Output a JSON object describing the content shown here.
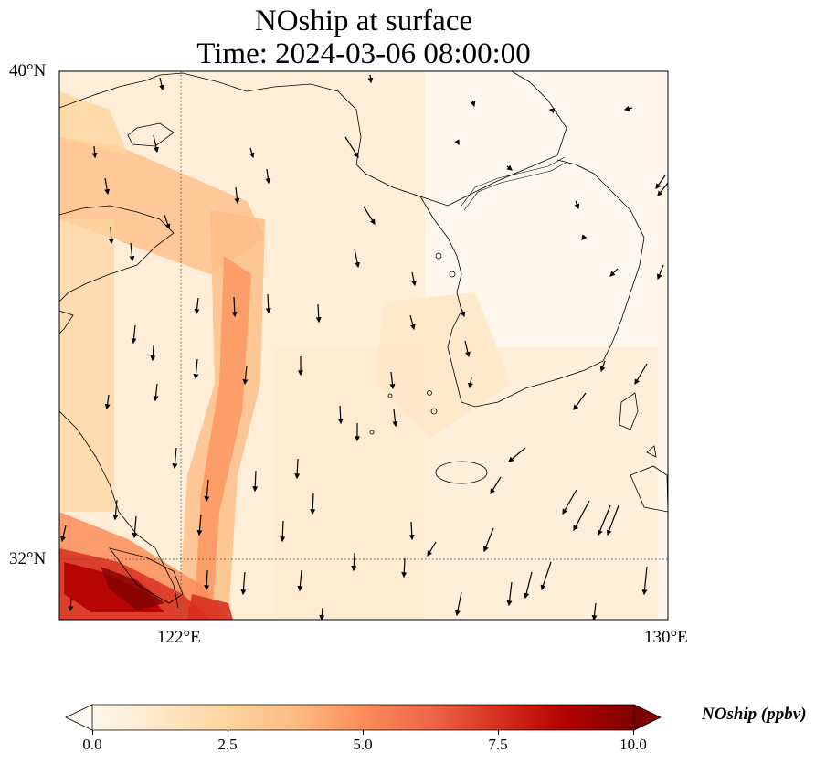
{
  "title": {
    "line1": "NOship at surface",
    "line2": "Time: 2024-03-06 08:00:00"
  },
  "axes": {
    "lat_labels": [
      "40°N",
      "32°N"
    ],
    "lon_labels": [
      "122°E",
      "130°E"
    ]
  },
  "map": {
    "lon_range": [
      120,
      130
    ],
    "lat_range": [
      31,
      40
    ],
    "gridlines": {
      "lon": [
        122
      ],
      "lat": [
        32
      ],
      "style": "dotted"
    },
    "field": "NOship",
    "colormap": "OrRd",
    "wind_vectors": true
  },
  "colorbar": {
    "label": "NOship (ppbv)",
    "min": 0,
    "max": 10,
    "extend": "both",
    "ticks": [
      "0.0",
      "2.5",
      "5.0",
      "7.5",
      "10.0"
    ]
  },
  "colors": {
    "field_low": "#fff7ec",
    "field_mid": "#fdbb84",
    "field_high": "#7f0000",
    "coastline": "#000000"
  }
}
